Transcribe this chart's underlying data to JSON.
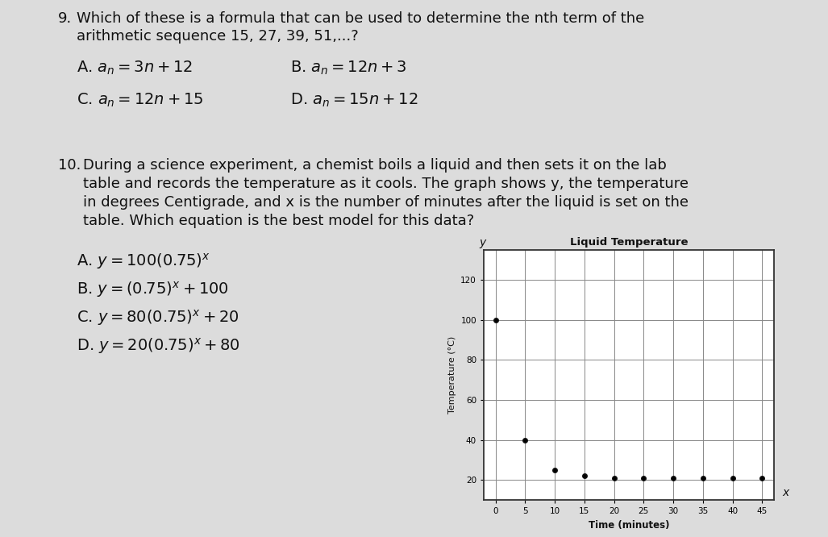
{
  "bg_color": "#c8c8c8",
  "paper_color": "#dcdcdc",
  "q9_number": "9.",
  "q9_text_line1": "Which of these is a formula that can be used to determine the nth term of the",
  "q9_text_line2": "arithmetic sequence 15, 27, 39, 51,...?",
  "q9_options": [
    {
      "label": "A. ",
      "formula": "$a_n = 3n + 12$",
      "col": 0
    },
    {
      "label": "B. ",
      "formula": "$a_n = 12n + 3$",
      "col": 1
    },
    {
      "label": "C. ",
      "formula": "$a_n = 12n + 15$",
      "col": 0
    },
    {
      "label": "D. ",
      "formula": "$a_n = 15n + 12$",
      "col": 1
    }
  ],
  "q10_number": "10.",
  "q10_text_line1": "During a science experiment, a chemist boils a liquid and then sets it on the lab",
  "q10_text_line2": "table and records the temperature as it cools. The graph shows y, the temperature",
  "q10_text_line3": "in degrees Centigrade, and x is the number of minutes after the liquid is set on the",
  "q10_text_line4": "table. Which equation is the best model for this data?",
  "q10_options": [
    {
      "label": "A. ",
      "formula": "$y = 100(0.75)^x$"
    },
    {
      "label": "B. ",
      "formula": "$y = (0.75)^x + 100$"
    },
    {
      "label": "C. ",
      "formula": "$y = 80(0.75)^x + 20$"
    },
    {
      "label": "D. ",
      "formula": "$y = 20(0.75)^x + 80$"
    }
  ],
  "chart_title": "Liquid Temperature",
  "chart_xlabel": "Time (minutes)",
  "chart_ylabel": "Temperature (°C)",
  "chart_xticks": [
    0,
    5,
    10,
    15,
    20,
    25,
    30,
    35,
    40,
    45
  ],
  "chart_yticks": [
    20,
    40,
    60,
    80,
    100,
    120
  ],
  "data_x": [
    0,
    5,
    10,
    15,
    20,
    25,
    30,
    35,
    40,
    45
  ],
  "data_y": [
    100,
    40,
    25,
    22,
    21,
    21,
    21,
    21,
    21,
    21
  ],
  "dot_color": "#111111",
  "grid_color": "#888888",
  "text_color": "#111111",
  "axis_label_color": "#111111"
}
